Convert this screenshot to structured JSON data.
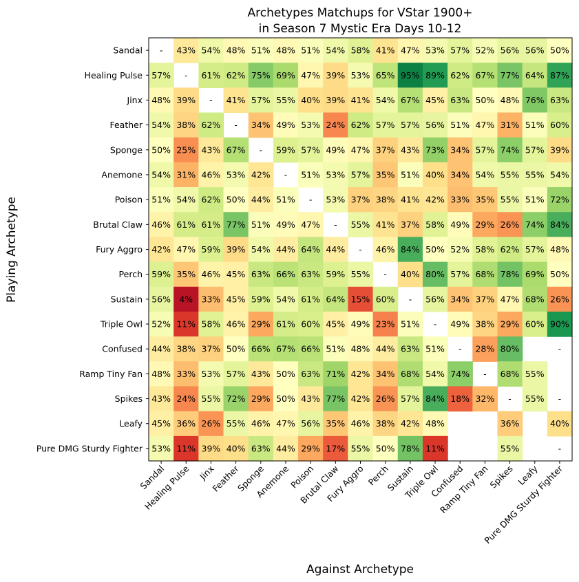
{
  "chart_data": {
    "type": "heatmap",
    "title": "Archetypes Matchups for VStar 1900+\nin Season 7 Mystic Era Days 10-12",
    "title_lines": [
      "Archetypes Matchups for VStar 1900+",
      "in Season 7 Mystic Era Days 10-12"
    ],
    "xlabel": "Against Archetype",
    "ylabel": "Playing Archetype",
    "rows": [
      "Sandal",
      "Healing Pulse",
      "Jinx",
      "Feather",
      "Sponge",
      "Anemone",
      "Poison",
      "Brutal Claw",
      "Fury Aggro",
      "Perch",
      "Sustain",
      "Triple Owl",
      "Confused",
      "Ramp Tiny Fan",
      "Spikes",
      "Leafy",
      "Pure DMG Sturdy Fighter"
    ],
    "columns": [
      "Sandal",
      "Healing Pulse",
      "Jinx",
      "Feather",
      "Sponge",
      "Anemone",
      "Poison",
      "Brutal Claw",
      "Fury Aggro",
      "Perch",
      "Sustain",
      "Triple Owl",
      "Confused",
      "Ramp Tiny Fan",
      "Spikes",
      "Leafy",
      "Pure DMG Sturdy Fighter"
    ],
    "unit": "%",
    "missing_label": "-",
    "colormap": "RdYlGn",
    "value_range": [
      0,
      100
    ],
    "values": [
      [
        null,
        43,
        54,
        48,
        51,
        48,
        51,
        54,
        58,
        41,
        47,
        53,
        57,
        52,
        56,
        56,
        50
      ],
      [
        57,
        null,
        61,
        62,
        75,
        69,
        47,
        39,
        53,
        65,
        95,
        89,
        62,
        67,
        77,
        64,
        87
      ],
      [
        48,
        39,
        null,
        41,
        57,
        55,
        40,
        39,
        41,
        54,
        67,
        45,
        63,
        50,
        48,
        76,
        63
      ],
      [
        54,
        38,
        62,
        null,
        34,
        49,
        53,
        24,
        62,
        57,
        57,
        56,
        51,
        47,
        31,
        51,
        60
      ],
      [
        50,
        25,
        43,
        67,
        null,
        59,
        57,
        49,
        47,
        37,
        43,
        73,
        34,
        57,
        74,
        57,
        39
      ],
      [
        54,
        31,
        46,
        53,
        42,
        null,
        51,
        53,
        57,
        35,
        51,
        40,
        34,
        54,
        55,
        55,
        54
      ],
      [
        51,
        54,
        62,
        50,
        44,
        51,
        null,
        53,
        37,
        38,
        41,
        42,
        33,
        35,
        55,
        51,
        72
      ],
      [
        46,
        61,
        61,
        77,
        51,
        49,
        47,
        null,
        55,
        41,
        37,
        58,
        49,
        29,
        26,
        74,
        84
      ],
      [
        42,
        47,
        59,
        39,
        54,
        44,
        64,
        44,
        null,
        46,
        84,
        50,
        52,
        58,
        62,
        57,
        48
      ],
      [
        59,
        35,
        46,
        45,
        63,
        66,
        63,
        59,
        55,
        null,
        40,
        80,
        57,
        68,
        78,
        69,
        50
      ],
      [
        56,
        4,
        33,
        45,
        59,
        54,
        61,
        64,
        15,
        60,
        null,
        56,
        34,
        37,
        47,
        68,
        26
      ],
      [
        52,
        11,
        58,
        46,
        29,
        61,
        60,
        45,
        49,
        23,
        51,
        null,
        49,
        38,
        29,
        60,
        90
      ],
      [
        44,
        38,
        37,
        50,
        66,
        67,
        66,
        51,
        48,
        44,
        63,
        51,
        null,
        28,
        80,
        null,
        null
      ],
      [
        48,
        33,
        53,
        57,
        43,
        50,
        63,
        71,
        42,
        34,
        68,
        54,
        74,
        null,
        68,
        55,
        null
      ],
      [
        43,
        24,
        55,
        72,
        29,
        50,
        43,
        77,
        42,
        26,
        57,
        84,
        18,
        32,
        null,
        55,
        null
      ],
      [
        45,
        36,
        26,
        55,
        46,
        47,
        56,
        35,
        46,
        38,
        42,
        48,
        null,
        null,
        36,
        null,
        40
      ],
      [
        53,
        11,
        39,
        40,
        63,
        44,
        29,
        17,
        55,
        50,
        78,
        11,
        null,
        null,
        55,
        null,
        null
      ]
    ],
    "blank_cells": [
      [
        12,
        15
      ],
      [
        13,
        16
      ],
      [
        15,
        12
      ],
      [
        15,
        13
      ],
      [
        15,
        15
      ],
      [
        16,
        12
      ],
      [
        16,
        13
      ],
      [
        16,
        15
      ]
    ]
  }
}
